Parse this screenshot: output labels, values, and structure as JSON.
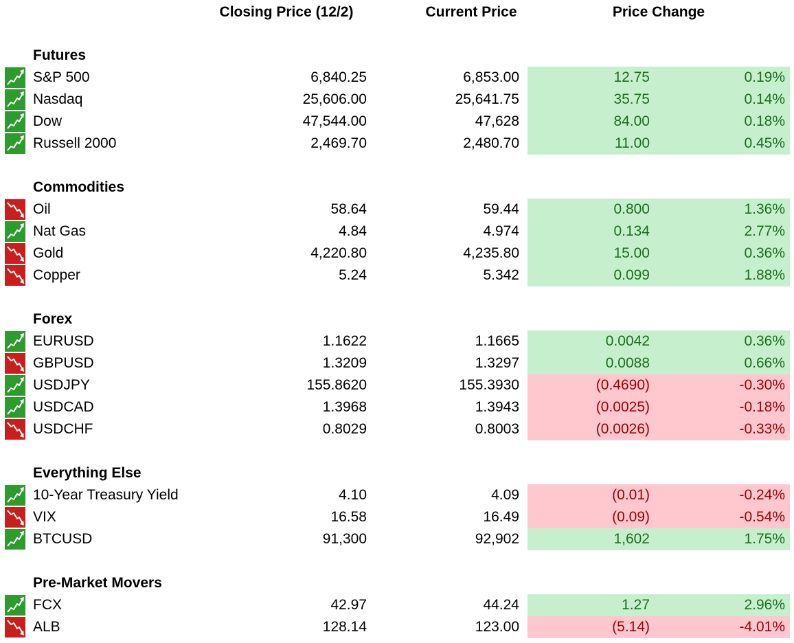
{
  "headers": {
    "closing": "Closing Price (12/2)",
    "current": "Current Price",
    "change": "Price Change"
  },
  "colors": {
    "up_fill": "#c6efce",
    "down_fill": "#ffc7ce",
    "up_text": "#1d6e1d",
    "down_text": "#9c0006",
    "icon_up": "#2e9b2e",
    "icon_down": "#c81e1e"
  },
  "sections": [
    {
      "title": "Futures",
      "rows": [
        {
          "name": "S&P 500",
          "close": "6,840.25",
          "current": "6,853.00",
          "change": "12.75",
          "pct": "0.19%",
          "trend": "up",
          "icon": "trend-up-icon"
        },
        {
          "name": "Nasdaq",
          "close": "25,606.00",
          "current": "25,641.75",
          "change": "35.75",
          "pct": "0.14%",
          "trend": "up",
          "icon": "trend-up-icon"
        },
        {
          "name": "Dow",
          "close": "47,544.00",
          "current": "47,628",
          "change": "84.00",
          "pct": "0.18%",
          "trend": "up",
          "icon": "trend-up-icon"
        },
        {
          "name": "Russell 2000",
          "close": "2,469.70",
          "current": "2,480.70",
          "change": "11.00",
          "pct": "0.45%",
          "trend": "up",
          "icon": "trend-up-icon"
        }
      ]
    },
    {
      "title": "Commodities",
      "rows": [
        {
          "name": "Oil",
          "close": "58.64",
          "current": "59.44",
          "change": "0.800",
          "pct": "1.36%",
          "trend": "up",
          "icon": "trend-down-icon"
        },
        {
          "name": "Nat Gas",
          "close": "4.84",
          "current": "4.974",
          "change": "0.134",
          "pct": "2.77%",
          "trend": "up",
          "icon": "trend-up-icon"
        },
        {
          "name": "Gold",
          "close": "4,220.80",
          "current": "4,235.80",
          "change": "15.00",
          "pct": "0.36%",
          "trend": "up",
          "icon": "trend-down-icon"
        },
        {
          "name": "Copper",
          "close": "5.24",
          "current": "5.342",
          "change": "0.099",
          "pct": "1.88%",
          "trend": "up",
          "icon": "trend-down-icon"
        }
      ]
    },
    {
      "title": "Forex",
      "rows": [
        {
          "name": "EURUSD",
          "close": "1.1622",
          "current": "1.1665",
          "change": "0.0042",
          "pct": "0.36%",
          "trend": "up",
          "icon": "trend-up-icon"
        },
        {
          "name": "GBPUSD",
          "close": "1.3209",
          "current": "1.3297",
          "change": "0.0088",
          "pct": "0.66%",
          "trend": "up",
          "icon": "trend-down-icon"
        },
        {
          "name": "USDJPY",
          "close": "155.8620",
          "current": "155.3930",
          "change": "(0.4690)",
          "pct": "-0.30%",
          "trend": "down",
          "icon": "trend-up-icon"
        },
        {
          "name": "USDCAD",
          "close": "1.3968",
          "current": "1.3943",
          "change": "(0.0025)",
          "pct": "-0.18%",
          "trend": "down",
          "icon": "trend-up-icon"
        },
        {
          "name": "USDCHF",
          "close": "0.8029",
          "current": "0.8003",
          "change": "(0.0026)",
          "pct": "-0.33%",
          "trend": "down",
          "icon": "trend-down-icon"
        }
      ]
    },
    {
      "title": "Everything Else",
      "rows": [
        {
          "name": "10-Year Treasury Yield",
          "close": "4.10",
          "current": "4.09",
          "change": "(0.01)",
          "pct": "-0.24%",
          "trend": "down",
          "icon": "trend-up-icon"
        },
        {
          "name": "VIX",
          "close": "16.58",
          "current": "16.49",
          "change": "(0.09)",
          "pct": "-0.54%",
          "trend": "down",
          "icon": "trend-down-icon"
        },
        {
          "name": "BTCUSD",
          "close": "91,300",
          "current": "92,902",
          "change": "1,602",
          "pct": "1.75%",
          "trend": "up",
          "icon": "trend-up-icon"
        }
      ]
    },
    {
      "title": "Pre-Market Movers",
      "rows": [
        {
          "name": "FCX",
          "close": "42.97",
          "current": "44.24",
          "change": "1.27",
          "pct": "2.96%",
          "trend": "up",
          "icon": "trend-up-icon"
        },
        {
          "name": "ALB",
          "close": "128.14",
          "current": "123.00",
          "change": "(5.14)",
          "pct": "-4.01%",
          "trend": "down",
          "icon": "trend-down-icon"
        }
      ]
    }
  ]
}
